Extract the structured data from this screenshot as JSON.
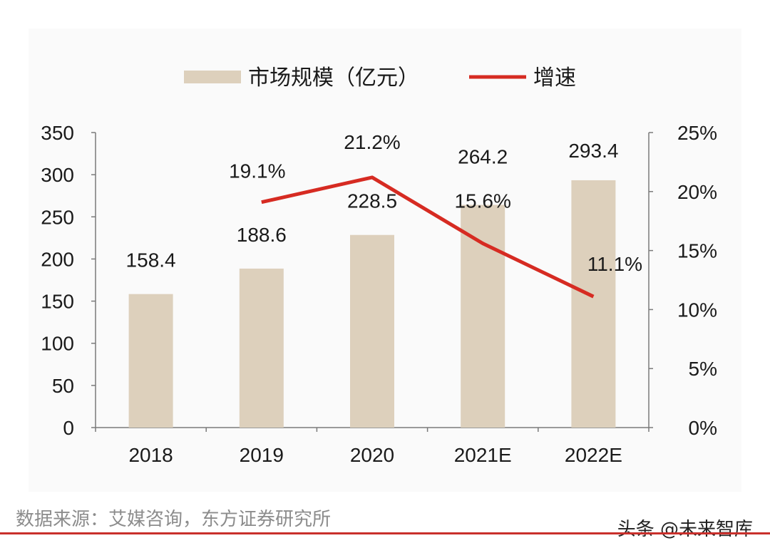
{
  "chart_data": {
    "type": "bar",
    "categories": [
      "2018",
      "2019",
      "2020",
      "2021E",
      "2022E"
    ],
    "series": [
      {
        "name": "市场规模（亿元）",
        "type": "bar",
        "axis": "left",
        "values": [
          158.4,
          188.6,
          228.5,
          264.2,
          293.4
        ],
        "labels": [
          "158.4",
          "188.6",
          "228.5",
          "264.2",
          "293.4"
        ],
        "color": "#ddd0bc"
      },
      {
        "name": "增速",
        "type": "line",
        "axis": "right",
        "values": [
          null,
          19.1,
          21.2,
          15.6,
          11.1
        ],
        "labels": [
          "",
          "19.1%",
          "21.2%",
          "15.6%",
          "11.1%"
        ],
        "color": "#d62b22"
      }
    ],
    "y_left": {
      "ylim": [
        0,
        350
      ],
      "ticks": [
        0,
        50,
        100,
        150,
        200,
        250,
        300,
        350
      ],
      "tick_labels": [
        "0",
        "50",
        "100",
        "150",
        "200",
        "250",
        "300",
        "350"
      ]
    },
    "y_right": {
      "ylim": [
        0,
        25
      ],
      "ticks": [
        0,
        5,
        10,
        15,
        20,
        25
      ],
      "tick_labels": [
        "0%",
        "5%",
        "10%",
        "15%",
        "20%",
        "25%"
      ]
    },
    "legend": "top-center",
    "grid": false
  },
  "source_note": "数据来源：艾媒咨询，东方证券研究所",
  "watermark": "头条 @未来智库"
}
